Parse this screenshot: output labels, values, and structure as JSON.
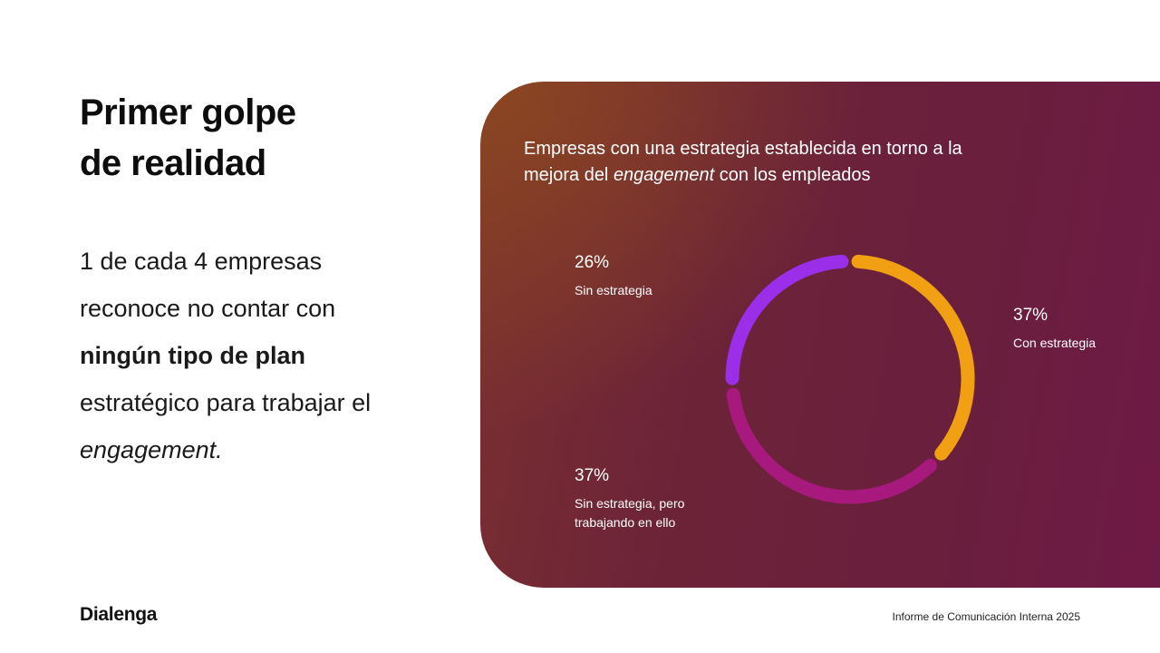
{
  "heading": {
    "line1": "Primer golpe",
    "line2": "de realidad"
  },
  "body": {
    "line1": "1 de cada 4 empresas",
    "line2": "reconoce no contar con",
    "line3_bold": "ningún tipo de plan",
    "line4": "estratégico para trabajar el",
    "line5_italic": "engagement."
  },
  "chart_data": {
    "type": "pie",
    "title_line1": "Empresas con una estrategia establecida en torno a la",
    "title_line2_pre": "mejora del ",
    "title_line2_italic": "engagement",
    "title_line2_post": " con los empleados",
    "slices": [
      {
        "label": "Con estrategia",
        "value": 37,
        "display": "37%",
        "color": "#f0a012"
      },
      {
        "label": "Sin estrategia, pero trabajando en ello",
        "label_line1": "Sin estrategia, pero",
        "label_line2": "trabajando en ello",
        "value": 37,
        "display": "37%",
        "color": "#a8197e"
      },
      {
        "label": "Sin estrategia",
        "value": 26,
        "display": "26%",
        "color": "#9b2ee8"
      }
    ]
  },
  "footer": {
    "brand": "Dialenga",
    "report": "Informe de Comunicación Interna 2025"
  }
}
